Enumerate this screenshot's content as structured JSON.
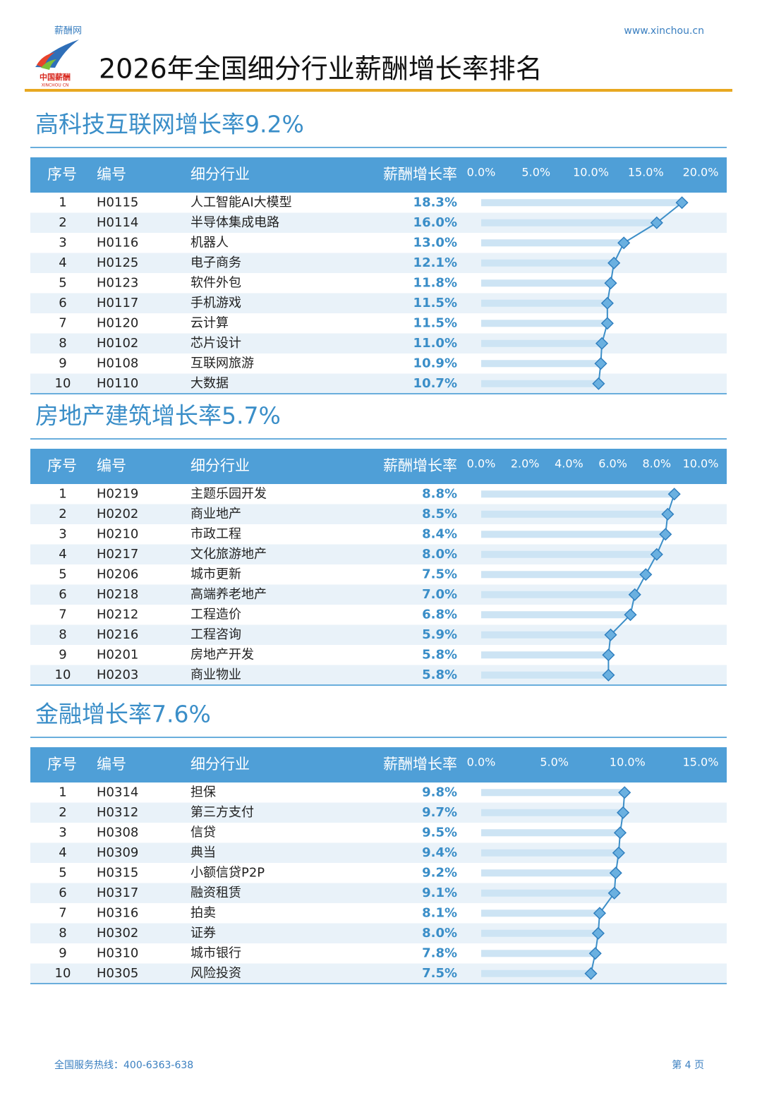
{
  "header": {
    "brand": "薪酬网",
    "url": "www.xinchou.cn",
    "title": "2026年全国细分行业薪酬增长率排名",
    "logo_text": "中国薪酬",
    "logo_subtext": "XINCHOU CN"
  },
  "sections": [
    {
      "title": "高科技互联网增长率9.2%",
      "columns": [
        "序号",
        "编号",
        "细分行业",
        "薪酬增长率"
      ],
      "rows": [
        [
          "1",
          "H0115",
          "人工智能AI大模型"
        ],
        [
          "2",
          "H0114",
          "半导体集成电路"
        ],
        [
          "3",
          "H0116",
          "机器人"
        ],
        [
          "4",
          "H0125",
          "电子商务"
        ],
        [
          "5",
          "H0123",
          "软件外包"
        ],
        [
          "6",
          "H0117",
          "手机游戏"
        ],
        [
          "7",
          "H0120",
          "云计算"
        ],
        [
          "8",
          "H0102",
          "芯片设计"
        ],
        [
          "9",
          "H0108",
          "互联网旅游"
        ],
        [
          "10",
          "H0110",
          "大数据"
        ]
      ],
      "values": [
        18.3,
        16.0,
        13.0,
        12.1,
        11.8,
        11.5,
        11.5,
        11.0,
        10.9,
        10.7
      ],
      "value_labels": [
        "18.3%",
        "16.0%",
        "13.0%",
        "12.1%",
        "11.8%",
        "11.5%",
        "11.5%",
        "11.0%",
        "10.9%",
        "10.7%"
      ],
      "xlim": [
        0,
        20
      ],
      "xticks": [
        {
          "value": 0,
          "label": "0.0%"
        },
        {
          "value": 5,
          "label": "5.0%"
        },
        {
          "value": 10,
          "label": "10.0%"
        },
        {
          "value": 15,
          "label": "15.0%"
        },
        {
          "value": 20,
          "label": "20.0%"
        }
      ]
    },
    {
      "title": "房地产建筑增长率5.7%",
      "columns": [
        "序号",
        "编号",
        "细分行业",
        "薪酬增长率"
      ],
      "rows": [
        [
          "1",
          "H0219",
          "主题乐园开发"
        ],
        [
          "2",
          "H0202",
          "商业地产"
        ],
        [
          "3",
          "H0210",
          "市政工程"
        ],
        [
          "4",
          "H0217",
          "文化旅游地产"
        ],
        [
          "5",
          "H0206",
          "城市更新"
        ],
        [
          "6",
          "H0218",
          "高端养老地产"
        ],
        [
          "7",
          "H0212",
          "工程造价"
        ],
        [
          "8",
          "H0216",
          "工程咨询"
        ],
        [
          "9",
          "H0201",
          "房地产开发"
        ],
        [
          "10",
          "H0203",
          "商业物业"
        ]
      ],
      "values": [
        8.8,
        8.5,
        8.4,
        8.0,
        7.5,
        7.0,
        6.8,
        5.9,
        5.8,
        5.8
      ],
      "value_labels": [
        "8.8%",
        "8.5%",
        "8.4%",
        "8.0%",
        "7.5%",
        "7.0%",
        "6.8%",
        "5.9%",
        "5.8%",
        "5.8%"
      ],
      "xlim": [
        0,
        10
      ],
      "xticks": [
        {
          "value": 0,
          "label": "0.0%"
        },
        {
          "value": 2,
          "label": "2.0%"
        },
        {
          "value": 4,
          "label": "4.0%"
        },
        {
          "value": 6,
          "label": "6.0%"
        },
        {
          "value": 8,
          "label": "8.0%"
        },
        {
          "value": 10,
          "label": "10.0%"
        }
      ]
    },
    {
      "title": "金融增长率7.6%",
      "columns": [
        "序号",
        "编号",
        "细分行业",
        "薪酬增长率"
      ],
      "rows": [
        [
          "1",
          "H0314",
          "担保"
        ],
        [
          "2",
          "H0312",
          "第三方支付"
        ],
        [
          "3",
          "H0308",
          "信贷"
        ],
        [
          "4",
          "H0309",
          "典当"
        ],
        [
          "5",
          "H0315",
          "小额信贷P2P"
        ],
        [
          "6",
          "H0317",
          "融资租赁"
        ],
        [
          "7",
          "H0316",
          "拍卖"
        ],
        [
          "8",
          "H0302",
          "证券"
        ],
        [
          "9",
          "H0310",
          "城市银行"
        ],
        [
          "10",
          "H0305",
          "风险投资"
        ]
      ],
      "values": [
        9.8,
        9.7,
        9.5,
        9.4,
        9.2,
        9.1,
        8.1,
        8.0,
        7.8,
        7.5
      ],
      "value_labels": [
        "9.8%",
        "9.7%",
        "9.5%",
        "9.4%",
        "9.2%",
        "9.1%",
        "8.1%",
        "8.0%",
        "7.8%",
        "7.5%"
      ],
      "xlim": [
        0,
        15
      ],
      "xticks": [
        {
          "value": 0,
          "label": "0.0%"
        },
        {
          "value": 5,
          "label": "5.0%"
        },
        {
          "value": 10,
          "label": "10.0%"
        },
        {
          "value": 15,
          "label": "15.0%"
        }
      ]
    }
  ],
  "footer": {
    "hotline": "全国服务热线：400-6363-638",
    "page": "第 4 页"
  }
}
